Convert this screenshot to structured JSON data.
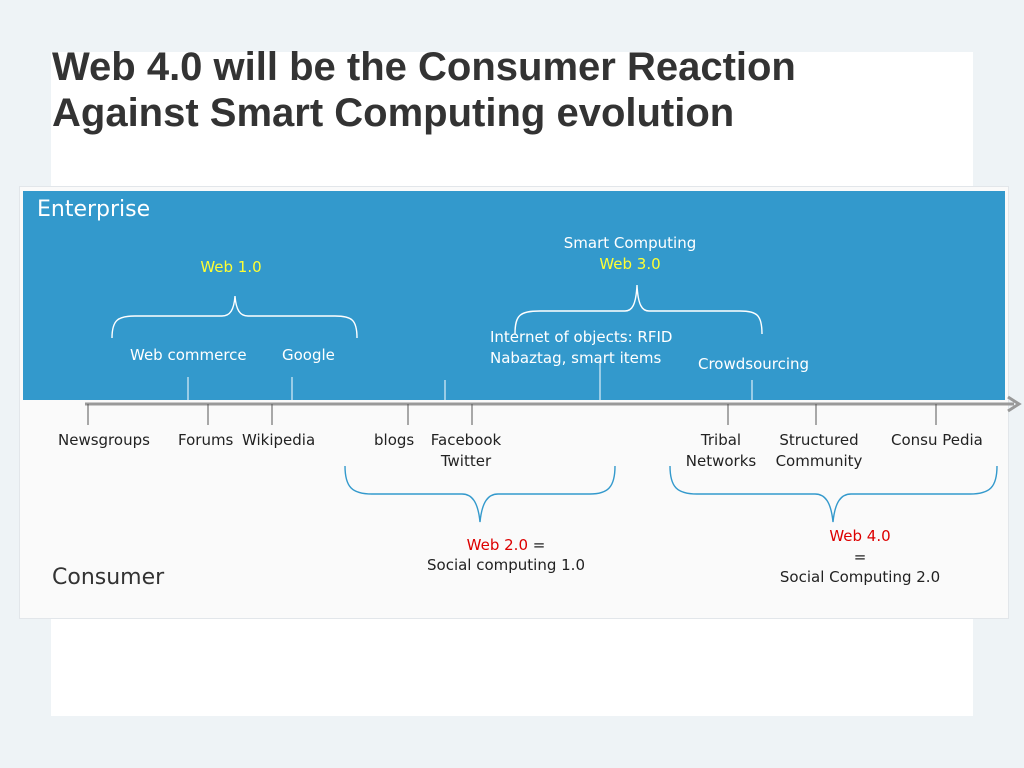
{
  "title_line1": "Web 4.0 will be the Consumer Reaction",
  "title_line2": "Against Smart Computing evolution",
  "enterprise_label": "Enterprise",
  "consumer_label": "Consumer",
  "web1": {
    "label": "Web 1.0",
    "items": [
      "Web commerce",
      "Google"
    ]
  },
  "web3": {
    "caption": "Smart Computing",
    "label": "Web 3.0",
    "iot_line1": "Internet of objects: RFID",
    "iot_line2": "Nabaztag, smart items",
    "crowdsourcing": "Crowdsourcing"
  },
  "timeline_items": {
    "newsgroups": "Newsgroups",
    "forums": "Forums",
    "wikipedia": "Wikipedia",
    "blogs": "blogs",
    "facebook": "Facebook",
    "twitter": "Twitter",
    "tribal": "Tribal",
    "networks": "Networks",
    "structured": "Structured",
    "community": "Community",
    "consu_pedia": "Consu Pedia"
  },
  "web2": {
    "label": "Web 2.0",
    "equals": "=",
    "desc": "Social computing 1.0"
  },
  "web4": {
    "label": "Web 4.0",
    "equals": "=",
    "desc": "Social Computing 2.0"
  },
  "colors": {
    "band": "#3399cc",
    "web_label_top": "#ffff33",
    "web_label_bottom": "#dd0000",
    "brace": "#3399cc",
    "axis": "#999999"
  }
}
